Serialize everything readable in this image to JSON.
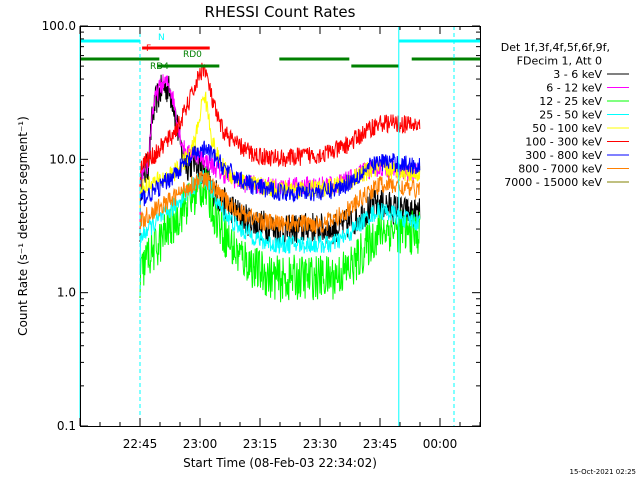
{
  "chart_data": {
    "type": "line",
    "title": "RHESSI Count Rates",
    "xlabel": "Start Time (08-Feb-03 22:34:02)",
    "ylabel": "Count Rate (s⁻¹ detector segment⁻¹)",
    "yscale": "log",
    "ylim": [
      0.1,
      100
    ],
    "xlim_minutes_from_start": [
      -4.03,
      95.97
    ],
    "x_tick_labels": [
      "22:45",
      "23:00",
      "23:15",
      "23:30",
      "23:45",
      "00:00"
    ],
    "y_tick_labels": [
      "0.1",
      "1.0",
      "10.0",
      "100.0"
    ],
    "legend_header": [
      "Det 1f,3f,4f,5f,6f,9f,",
      "FDecim 1, Att 0"
    ],
    "timestamp": "15-Oct-2021 02:25",
    "x_minutes": [
      10.97,
      11,
      12,
      13,
      14,
      15,
      16,
      17,
      18,
      19,
      20,
      21,
      22,
      23,
      24,
      25,
      26,
      27,
      28,
      29,
      30,
      31,
      32,
      33,
      34,
      35,
      36,
      37,
      38,
      39,
      40,
      41,
      42,
      43,
      44,
      45,
      46,
      47,
      48,
      49,
      50,
      51,
      52,
      53,
      54,
      55,
      56,
      57,
      58,
      59,
      60,
      61,
      62,
      63,
      64,
      65,
      66,
      67,
      68,
      69,
      70,
      71,
      72,
      73,
      74,
      75,
      76,
      77,
      78,
      79,
      80,
      81
    ],
    "series": [
      {
        "name": "3 - 6 keV",
        "color": "#000000",
        "values": [
          3.0,
          6.0,
          7.5,
          9.0,
          20,
          28,
          32,
          35,
          34,
          29,
          20,
          13,
          10,
          9,
          9.5,
          10,
          9,
          8,
          7,
          6,
          5.5,
          5,
          4.7,
          4.5,
          4.3,
          4,
          3.8,
          3.6,
          3.5,
          3.4,
          3.3,
          3.2,
          3.2,
          3.1,
          3.1,
          3.0,
          3.0,
          2.9,
          2.9,
          3.0,
          3.0,
          3.0,
          3.0,
          3.1,
          3.1,
          3.0,
          3.0,
          3.0,
          3.0,
          3.0,
          3.1,
          3.1,
          3.2,
          3.3,
          3.4,
          3.6,
          3.8,
          4.0,
          4.2,
          4.5,
          4.6,
          4.7,
          4.6,
          4.5,
          4.3,
          4.2,
          4.1,
          4.0,
          4.0,
          3.9,
          3.9,
          3.9
        ]
      },
      {
        "name": "6 - 12 keV",
        "color": "#ff00ff",
        "values": [
          3.5,
          7.0,
          8.0,
          9.0,
          22,
          30,
          35,
          38,
          37,
          31,
          22,
          15,
          12,
          11,
          11,
          11,
          10.5,
          10,
          9.5,
          9,
          8.5,
          8,
          7.7,
          7.5,
          7.2,
          7,
          6.8,
          6.6,
          6.5,
          6.5,
          6.4,
          6.4,
          6.3,
          6.3,
          6.2,
          6.2,
          6.2,
          6.2,
          6.2,
          6.3,
          6.3,
          6.3,
          6.4,
          6.4,
          6.4,
          6.4,
          6.4,
          6.4,
          6.5,
          6.5,
          6.6,
          6.7,
          6.8,
          7.0,
          7.2,
          7.5,
          7.8,
          8.1,
          8.3,
          8.5,
          8.6,
          8.7,
          8.6,
          8.5,
          8.4,
          8.3,
          8.2,
          8.1,
          8.0,
          8.0,
          7.9,
          7.9
        ]
      },
      {
        "name": "12 - 25 keV",
        "color": "#00ff00",
        "values": [
          0.8,
          1.3,
          1.6,
          1.9,
          2.0,
          2.2,
          2.4,
          2.7,
          3.0,
          3.3,
          3.6,
          4.0,
          4.4,
          4.8,
          5.2,
          5.6,
          6.0,
          6.4,
          5.5,
          4.5,
          3.8,
          3.2,
          2.8,
          2.5,
          2.2,
          2.0,
          1.9,
          1.8,
          1.7,
          1.6,
          1.5,
          1.45,
          1.4,
          1.35,
          1.3,
          1.3,
          1.25,
          1.25,
          1.25,
          1.3,
          1.3,
          1.3,
          1.3,
          1.3,
          1.3,
          1.3,
          1.3,
          1.3,
          1.3,
          1.3,
          1.35,
          1.4,
          1.45,
          1.5,
          1.6,
          1.7,
          1.9,
          2.1,
          2.3,
          2.5,
          2.7,
          2.9,
          3.0,
          3.0,
          3.0,
          2.9,
          2.9,
          2.8,
          2.8,
          2.8,
          2.8,
          2.8
        ]
      },
      {
        "name": "25 - 50 keV",
        "color": "#00ffff",
        "values": [
          1.5,
          2.5,
          2.8,
          3.0,
          3.2,
          3.4,
          3.6,
          3.8,
          4.0,
          4.3,
          4.6,
          5.0,
          5.4,
          5.8,
          6.2,
          6.6,
          7.0,
          7.2,
          6.6,
          5.8,
          5.0,
          4.4,
          4.0,
          3.7,
          3.4,
          3.2,
          3.0,
          2.9,
          2.8,
          2.7,
          2.6,
          2.5,
          2.4,
          2.4,
          2.3,
          2.3,
          2.3,
          2.3,
          2.3,
          2.3,
          2.3,
          2.3,
          2.3,
          2.3,
          2.3,
          2.3,
          2.3,
          2.3,
          2.3,
          2.3,
          2.4,
          2.5,
          2.6,
          2.7,
          2.9,
          3.1,
          3.3,
          3.5,
          3.7,
          3.9,
          4.0,
          4.1,
          4.1,
          4.0,
          3.9,
          3.8,
          3.7,
          3.6,
          3.5,
          3.5,
          3.4,
          3.4
        ]
      },
      {
        "name": "50 - 100 keV",
        "color": "#ffff00",
        "values": [
          4.0,
          6.0,
          6.2,
          6.4,
          6.6,
          6.8,
          7.0,
          7.2,
          7.5,
          7.8,
          8.2,
          8.8,
          9.6,
          10.5,
          12,
          15,
          22,
          32,
          22,
          14,
          11,
          9.5,
          8.5,
          8.0,
          7.5,
          7.2,
          7.0,
          6.8,
          6.6,
          6.5,
          6.4,
          6.3,
          6.2,
          6.2,
          6.1,
          6.1,
          6.0,
          6.0,
          6.0,
          6.0,
          6.0,
          6.0,
          6.0,
          6.0,
          6.0,
          6.0,
          6.0,
          6.0,
          6.1,
          6.2,
          6.3,
          6.4,
          6.6,
          6.8,
          7.0,
          7.3,
          7.6,
          7.9,
          8.2,
          8.4,
          8.5,
          8.6,
          8.5,
          8.4,
          8.3,
          8.2,
          8.1,
          8.0,
          8.0,
          7.9,
          7.9,
          7.9
        ]
      },
      {
        "name": "100 - 300 keV",
        "color": "#ff0000",
        "values": [
          7.0,
          9.0,
          9.5,
          10,
          10.5,
          11,
          12,
          13,
          14,
          15,
          17,
          19,
          22,
          26,
          31,
          37,
          44,
          50,
          38,
          28,
          22,
          18,
          16,
          15,
          14,
          13,
          12.5,
          12,
          11.5,
          11,
          10.8,
          10.6,
          10.5,
          10.4,
          10.3,
          10.2,
          10.2,
          10.2,
          10.2,
          10.3,
          10.4,
          10.5,
          10.6,
          10.7,
          10.8,
          10.8,
          10.9,
          11.0,
          11.2,
          11.4,
          11.7,
          12.0,
          12.5,
          13.0,
          13.6,
          14.3,
          15.0,
          15.8,
          16.6,
          17.4,
          18.0,
          18.5,
          18.7,
          18.7,
          18.6,
          18.5,
          18.4,
          18.3,
          18.2,
          18.1,
          18.0,
          18.0
        ]
      },
      {
        "name": "300 - 800 keV",
        "color": "#0000ff",
        "values": [
          4.5,
          5.0,
          5.2,
          5.4,
          5.6,
          5.9,
          6.2,
          6.6,
          7.0,
          7.5,
          8.0,
          8.6,
          9.2,
          9.8,
          10.4,
          11.0,
          11.5,
          11.8,
          11.5,
          10.8,
          10.0,
          9.3,
          8.7,
          8.2,
          7.8,
          7.4,
          7.1,
          6.8,
          6.6,
          6.4,
          6.2,
          6.1,
          6.0,
          5.9,
          5.8,
          5.8,
          5.7,
          5.7,
          5.7,
          5.7,
          5.7,
          5.7,
          5.7,
          5.7,
          5.7,
          5.7,
          5.7,
          5.7,
          5.8,
          5.9,
          6.0,
          6.2,
          6.4,
          6.7,
          7.0,
          7.4,
          7.8,
          8.2,
          8.6,
          9.0,
          9.3,
          9.5,
          9.6,
          9.6,
          9.5,
          9.4,
          9.3,
          9.2,
          9.1,
          9.0,
          9.0,
          9.0
        ]
      },
      {
        "name": "800 - 7000 keV",
        "color": "#ff8000",
        "values": [
          3.0,
          3.4,
          3.6,
          3.8,
          4.0,
          4.2,
          4.4,
          4.6,
          4.8,
          5.0,
          5.3,
          5.6,
          5.9,
          6.2,
          6.5,
          6.8,
          7.0,
          7.1,
          6.8,
          6.3,
          5.8,
          5.4,
          5.0,
          4.7,
          4.4,
          4.2,
          4.0,
          3.9,
          3.8,
          3.7,
          3.6,
          3.5,
          3.4,
          3.4,
          3.3,
          3.3,
          3.3,
          3.3,
          3.3,
          3.3,
          3.3,
          3.3,
          3.3,
          3.3,
          3.3,
          3.3,
          3.3,
          3.3,
          3.4,
          3.5,
          3.6,
          3.8,
          4.0,
          4.2,
          4.4,
          4.7,
          5.0,
          5.3,
          5.6,
          5.9,
          6.2,
          6.4,
          6.5,
          6.5,
          6.4,
          6.3,
          6.2,
          6.1,
          6.0,
          6.0,
          6.0,
          6.0
        ]
      },
      {
        "name": "7000 - 15000 keV",
        "color": "#808000",
        "values": []
      }
    ],
    "attenuator_flags": [
      {
        "label": "N",
        "color": "#00ffff",
        "row": 1,
        "segments": [
          [
            -4.03,
            10.97
          ],
          [
            75.67,
            95.97
          ]
        ]
      },
      {
        "label": "F",
        "color": "#ff0000",
        "row": 2,
        "segments": [
          [
            11.5,
            28.4
          ]
        ]
      },
      {
        "label": "RD0",
        "color": "#008000",
        "row": 3,
        "segments": [
          [
            -4.03,
            15.8
          ],
          [
            45.8,
            63.3
          ],
          [
            78.9,
            95.97
          ]
        ]
      },
      {
        "label": "RD4",
        "color": "#008000",
        "row": 4,
        "segments": [
          [
            15.3,
            30.8
          ],
          [
            63.8,
            75.6
          ]
        ]
      }
    ],
    "vertical_markers": [
      {
        "x": -4.03,
        "color": "#00ffff",
        "style": "solid"
      },
      {
        "x": 10.97,
        "color": "#00ffff",
        "style": "dashed"
      },
      {
        "x": 75.67,
        "color": "#00ffff",
        "style": "solid"
      },
      {
        "x": 89.47,
        "color": "#00ffff",
        "style": "dashed"
      }
    ]
  }
}
